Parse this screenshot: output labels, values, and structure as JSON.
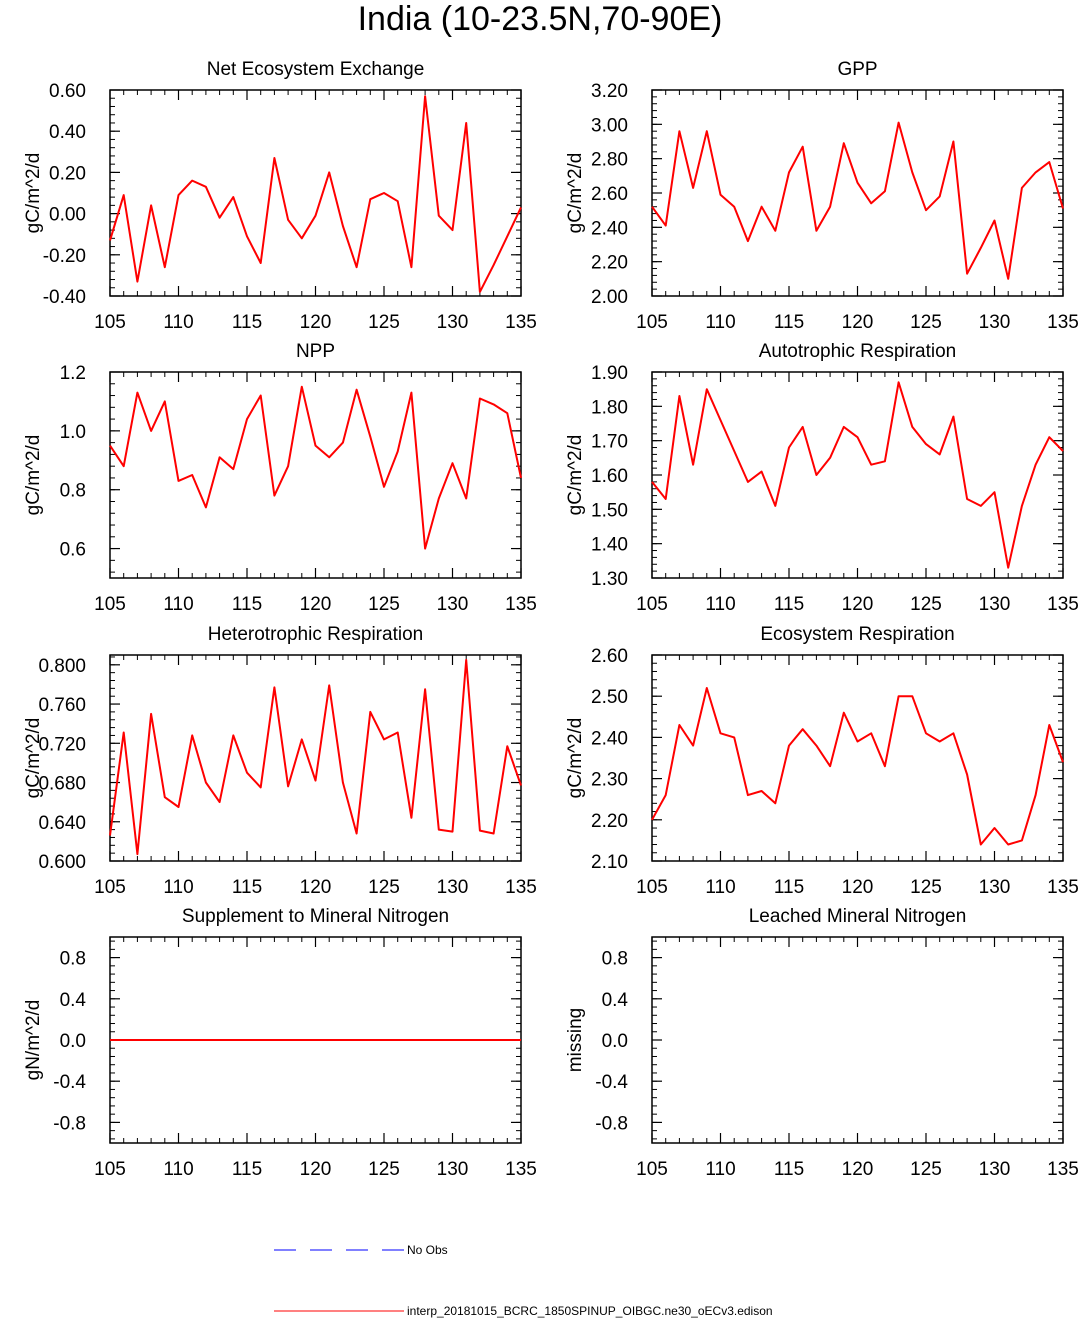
{
  "page_title": "India (10-23.5N,70-90E)",
  "colors": {
    "model_line": "#ff0000",
    "obs_line": "#0000ff",
    "axis": "#000000"
  },
  "legend": [
    {
      "label": "No Obs",
      "style": "dashed",
      "color": "#0000ff"
    },
    {
      "label": "interp_20181015_BCRC_1850SPINUP_OIBGC.ne30_oECv3.edison",
      "style": "solid",
      "color": "#ff0000"
    }
  ],
  "chart_data": [
    {
      "type": "line",
      "title": "Net Ecosystem Exchange",
      "ylabel": "gC/m^2/d",
      "xlim": [
        105,
        135
      ],
      "ylim": [
        -0.4,
        0.6
      ],
      "x_ticks": [
        "105",
        "110",
        "115",
        "120",
        "125",
        "130",
        "135"
      ],
      "y_ticks": [
        "-0.40",
        "-0.20",
        "0.00",
        "0.20",
        "0.40",
        "0.60"
      ],
      "x": [
        105,
        106,
        107,
        108,
        109,
        110,
        111,
        112,
        113,
        114,
        115,
        116,
        117,
        118,
        119,
        120,
        121,
        122,
        123,
        124,
        125,
        126,
        127,
        128,
        129,
        130,
        131,
        132,
        133,
        134,
        135
      ],
      "series": [
        {
          "values": [
            -0.13,
            0.09,
            -0.33,
            0.04,
            -0.26,
            0.09,
            0.16,
            0.13,
            -0.02,
            0.08,
            -0.11,
            -0.24,
            0.27,
            -0.03,
            -0.12,
            -0.01,
            0.2,
            -0.06,
            -0.26,
            0.07,
            0.1,
            0.06,
            -0.26,
            0.57,
            -0.01,
            -0.08,
            0.44,
            -0.38,
            -0.25,
            -0.11,
            0.03
          ]
        }
      ]
    },
    {
      "type": "line",
      "title": "GPP",
      "ylabel": "gC/m^2/d",
      "xlim": [
        105,
        135
      ],
      "ylim": [
        2.0,
        3.2
      ],
      "x_ticks": [
        "105",
        "110",
        "115",
        "120",
        "125",
        "130",
        "135"
      ],
      "y_ticks": [
        "2.00",
        "2.20",
        "2.40",
        "2.60",
        "2.80",
        "3.00",
        "3.20"
      ],
      "x": [
        105,
        106,
        107,
        108,
        109,
        110,
        111,
        112,
        113,
        114,
        115,
        116,
        117,
        118,
        119,
        120,
        121,
        122,
        123,
        124,
        125,
        126,
        127,
        128,
        129,
        130,
        131,
        132,
        133,
        134,
        135
      ],
      "series": [
        {
          "values": [
            2.52,
            2.41,
            2.96,
            2.63,
            2.96,
            2.59,
            2.52,
            2.32,
            2.52,
            2.38,
            2.72,
            2.87,
            2.38,
            2.52,
            2.89,
            2.66,
            2.54,
            2.61,
            3.01,
            2.72,
            2.5,
            2.58,
            2.9,
            2.13,
            2.28,
            2.44,
            2.1,
            2.63,
            2.72,
            2.78,
            2.51
          ]
        }
      ]
    },
    {
      "type": "line",
      "title": "NPP",
      "ylabel": "gC/m^2/d",
      "xlim": [
        105,
        135
      ],
      "ylim": [
        0.5,
        1.2
      ],
      "x_ticks": [
        "105",
        "110",
        "115",
        "120",
        "125",
        "130",
        "135"
      ],
      "y_ticks": [
        "0.6",
        "0.8",
        "1.0",
        "1.2"
      ],
      "x": [
        105,
        106,
        107,
        108,
        109,
        110,
        111,
        112,
        113,
        114,
        115,
        116,
        117,
        118,
        119,
        120,
        121,
        122,
        123,
        124,
        125,
        126,
        127,
        128,
        129,
        130,
        131,
        132,
        133,
        134,
        135
      ],
      "series": [
        {
          "values": [
            0.95,
            0.88,
            1.13,
            1.0,
            1.1,
            0.83,
            0.85,
            0.74,
            0.91,
            0.87,
            1.04,
            1.12,
            0.78,
            0.88,
            1.15,
            0.95,
            0.91,
            0.96,
            1.14,
            0.98,
            0.81,
            0.93,
            1.13,
            0.6,
            0.77,
            0.89,
            0.77,
            1.11,
            1.09,
            1.06,
            0.84
          ]
        }
      ]
    },
    {
      "type": "line",
      "title": "Autotrophic Respiration",
      "ylabel": "gC/m^2/d",
      "xlim": [
        105,
        135
      ],
      "ylim": [
        1.3,
        1.9
      ],
      "x_ticks": [
        "105",
        "110",
        "115",
        "120",
        "125",
        "130",
        "135"
      ],
      "y_ticks": [
        "1.30",
        "1.40",
        "1.50",
        "1.60",
        "1.70",
        "1.80",
        "1.90"
      ],
      "x": [
        105,
        106,
        107,
        108,
        109,
        110,
        111,
        112,
        113,
        114,
        115,
        116,
        117,
        118,
        119,
        120,
        121,
        122,
        123,
        124,
        125,
        126,
        127,
        128,
        129,
        130,
        131,
        132,
        133,
        134,
        135
      ],
      "series": [
        {
          "values": [
            1.58,
            1.53,
            1.83,
            1.63,
            1.85,
            1.76,
            1.67,
            1.58,
            1.61,
            1.51,
            1.68,
            1.74,
            1.6,
            1.65,
            1.74,
            1.71,
            1.63,
            1.64,
            1.87,
            1.74,
            1.69,
            1.66,
            1.77,
            1.53,
            1.51,
            1.55,
            1.33,
            1.51,
            1.63,
            1.71,
            1.67
          ]
        }
      ]
    },
    {
      "type": "line",
      "title": "Heterotrophic Respiration",
      "ylabel": "gC/m^2/d",
      "xlim": [
        105,
        135
      ],
      "ylim": [
        0.6,
        0.81
      ],
      "x_ticks": [
        "105",
        "110",
        "115",
        "120",
        "125",
        "130",
        "135"
      ],
      "y_ticks": [
        "0.600",
        "0.640",
        "0.680",
        "0.720",
        "0.760",
        "0.800"
      ],
      "x": [
        105,
        106,
        107,
        108,
        109,
        110,
        111,
        112,
        113,
        114,
        115,
        116,
        117,
        118,
        119,
        120,
        121,
        122,
        123,
        124,
        125,
        126,
        127,
        128,
        129,
        130,
        131,
        132,
        133,
        134,
        135
      ],
      "series": [
        {
          "values": [
            0.626,
            0.731,
            0.607,
            0.75,
            0.665,
            0.655,
            0.728,
            0.68,
            0.66,
            0.728,
            0.69,
            0.675,
            0.777,
            0.676,
            0.724,
            0.682,
            0.779,
            0.68,
            0.628,
            0.752,
            0.724,
            0.731,
            0.644,
            0.775,
            0.632,
            0.63,
            0.805,
            0.631,
            0.628,
            0.717,
            0.677
          ]
        }
      ]
    },
    {
      "type": "line",
      "title": "Ecosystem Respiration",
      "ylabel": "gC/m^2/d",
      "xlim": [
        105,
        135
      ],
      "ylim": [
        2.1,
        2.6
      ],
      "x_ticks": [
        "105",
        "110",
        "115",
        "120",
        "125",
        "130",
        "135"
      ],
      "y_ticks": [
        "2.10",
        "2.20",
        "2.30",
        "2.40",
        "2.50",
        "2.60"
      ],
      "x": [
        105,
        106,
        107,
        108,
        109,
        110,
        111,
        112,
        113,
        114,
        115,
        116,
        117,
        118,
        119,
        120,
        121,
        122,
        123,
        124,
        125,
        126,
        127,
        128,
        129,
        130,
        131,
        132,
        133,
        134,
        135
      ],
      "series": [
        {
          "values": [
            2.2,
            2.26,
            2.43,
            2.38,
            2.52,
            2.41,
            2.4,
            2.26,
            2.27,
            2.24,
            2.38,
            2.42,
            2.38,
            2.33,
            2.46,
            2.39,
            2.41,
            2.33,
            2.5,
            2.5,
            2.41,
            2.39,
            2.41,
            2.31,
            2.14,
            2.18,
            2.14,
            2.15,
            2.26,
            2.43,
            2.34
          ]
        }
      ]
    },
    {
      "type": "line",
      "title": "Supplement to Mineral Nitrogen",
      "ylabel": "gN/m^2/d",
      "xlim": [
        105,
        135
      ],
      "ylim": [
        -1.0,
        1.0
      ],
      "x_ticks": [
        "105",
        "110",
        "115",
        "120",
        "125",
        "130",
        "135"
      ],
      "y_ticks": [
        "-0.8",
        "-0.4",
        "0.0",
        "0.4",
        "0.8"
      ],
      "x": [
        105,
        106,
        107,
        108,
        109,
        110,
        111,
        112,
        113,
        114,
        115,
        116,
        117,
        118,
        119,
        120,
        121,
        122,
        123,
        124,
        125,
        126,
        127,
        128,
        129,
        130,
        131,
        132,
        133,
        134,
        135
      ],
      "series": [
        {
          "values": [
            0,
            0,
            0,
            0,
            0,
            0,
            0,
            0,
            0,
            0,
            0,
            0,
            0,
            0,
            0,
            0,
            0,
            0,
            0,
            0,
            0,
            0,
            0,
            0,
            0,
            0,
            0,
            0,
            0,
            0,
            0
          ]
        }
      ]
    },
    {
      "type": "line",
      "title": "Leached Mineral Nitrogen",
      "ylabel": "missing",
      "xlim": [
        105,
        135
      ],
      "ylim": [
        -1.0,
        1.0
      ],
      "x_ticks": [
        "105",
        "110",
        "115",
        "120",
        "125",
        "130",
        "135"
      ],
      "y_ticks": [
        "-0.8",
        "-0.4",
        "0.0",
        "0.4",
        "0.8"
      ],
      "x": [],
      "series": []
    }
  ]
}
